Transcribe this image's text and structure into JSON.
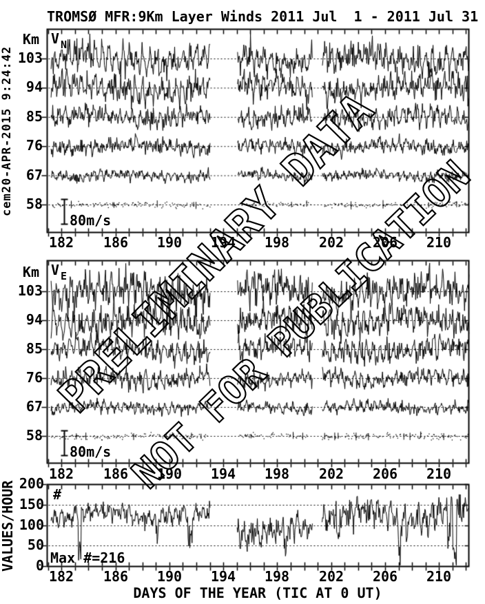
{
  "header": {
    "title": "TROMSØ MFR:9Km Layer Winds 2011 Jul  1 - 2011 Jul 31",
    "side_timestamp": "cem20-APR-2015  9:24:42"
  },
  "watermark": {
    "line1": "PRELIMINARY DATA",
    "line2": "NOT FOR PUBLICATION"
  },
  "x_axis": {
    "label": "DAYS OF THE YEAR (TIC AT 0 UT)",
    "labeled_ticks": [
      182,
      186,
      190,
      194,
      198,
      202,
      206,
      210
    ],
    "minor_tick_step_days": 1,
    "range_days": [
      181,
      212.2
    ]
  },
  "chart_data": [
    {
      "id": "v_north",
      "type": "line",
      "label_main": "V",
      "label_sub": "N",
      "unit_label": "Km",
      "altitudes_km": [
        103,
        94,
        85,
        76,
        67,
        58
      ],
      "wind_sd_mps": [
        29,
        25,
        19,
        15,
        10,
        4.5
      ],
      "sparse_levels_km": [
        58
      ],
      "scale_bar": {
        "label": "80m/s",
        "mps": 80
      },
      "x_range_days": [
        181.2,
        212.2
      ],
      "data_gaps_days": [
        [
          193.0,
          195.0
        ],
        [
          200.6,
          201.3
        ]
      ],
      "samples_per_day": 24,
      "seed": 73911
    },
    {
      "id": "v_east",
      "type": "line",
      "label_main": "V",
      "label_sub": "E",
      "unit_label": "Km",
      "altitudes_km": [
        103,
        94,
        85,
        76,
        67,
        58
      ],
      "wind_sd_mps": [
        33,
        28,
        22,
        17,
        11,
        5
      ],
      "sparse_levels_km": [
        58
      ],
      "scale_bar": {
        "label": "80m/s",
        "mps": 80
      },
      "x_range_days": [
        181.2,
        212.2
      ],
      "data_gaps_days": [
        [
          193.0,
          195.0
        ],
        [
          200.6,
          201.3
        ]
      ],
      "samples_per_day": 24,
      "seed": 52417
    },
    {
      "id": "values_per_hour",
      "type": "line",
      "panel_label": "#",
      "ylabel": "VALUES/HOUR",
      "ylim": [
        0,
        200
      ],
      "yticks": [
        0,
        50,
        100,
        150,
        200
      ],
      "dotted_gridlines": [
        50,
        100,
        150
      ],
      "max_annotation": "Max #=216",
      "max_value": 216,
      "segments": [
        {
          "days": [
            181.2,
            193.0
          ],
          "mean": 125,
          "sd": 18
        },
        {
          "days": [
            195.0,
            200.6
          ],
          "mean": 85,
          "sd": 25
        },
        {
          "days": [
            201.3,
            212.2
          ],
          "mean": 128,
          "sd": 27
        }
      ],
      "samples_per_day": 24,
      "seed": 90210
    }
  ]
}
